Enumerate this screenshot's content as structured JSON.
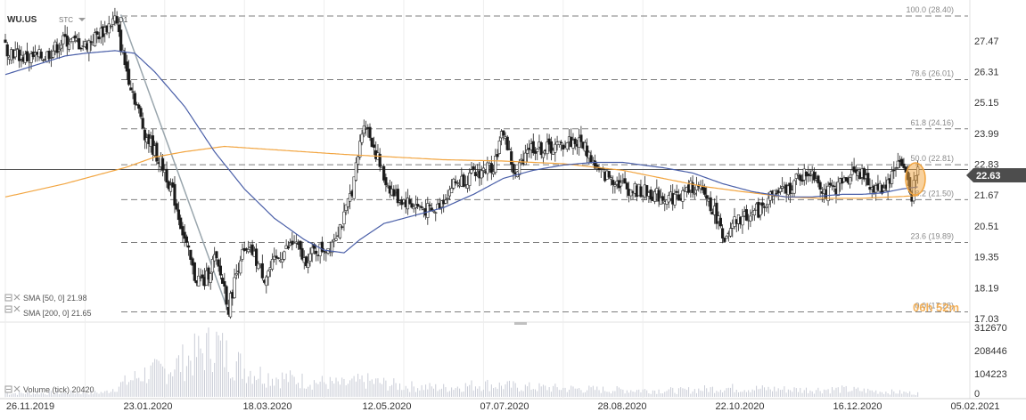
{
  "header": {
    "symbol": "WU.US",
    "chart_type": "STC",
    "interval": "D1"
  },
  "colors": {
    "up": "#ffffff",
    "down": "#1a1a1a",
    "candle_outline": "#222222",
    "sma50": "#4a5fa8",
    "sma200": "#f2a540",
    "fib": "#7d7d7d",
    "trend": "#9aa6ad",
    "current_price_badge": "#4d4d4d",
    "volume": "#c9ccd6",
    "highlight": "#f2a540"
  },
  "indicators": [
    {
      "label": "SMA [50, 0] 21.98",
      "color": "#4a5fa8"
    },
    {
      "label": "SMA [200, 0] 21.65",
      "color": "#f2a540"
    }
  ],
  "volume_label": "Volume (tick) 20420",
  "current_price": "22.63",
  "countdown": "06h 52m",
  "fib_labels": [
    "100.0 (28.40)",
    "78.6 (26.01)",
    "61.8 (24.16)",
    "50.0 (22.81)",
    "38.2 (21.50)",
    "23.6 (19.89)",
    "0.0 (17.28)"
  ],
  "chart_data": {
    "type": "candlestick",
    "x_tick_labels": [
      "26.11.2019",
      "23.01.2020",
      "18.03.2020",
      "12.05.2020",
      "07.07.2020",
      "28.08.2020",
      "22.10.2020",
      "16.12.2020",
      "05.02.2021"
    ],
    "y_tick_labels": [
      "27.47",
      "26.31",
      "25.15",
      "23.99",
      "22.83",
      "21.67",
      "20.51",
      "19.35",
      "18.19",
      "17.03"
    ],
    "ylim": [
      17.03,
      28.4
    ],
    "volume_tick_labels": [
      "312670",
      "208446",
      "104223",
      "0"
    ],
    "volume_ylim": [
      0,
      312670
    ],
    "fib_levels": [
      {
        "ratio": 100.0,
        "price": 28.4
      },
      {
        "ratio": 78.6,
        "price": 26.01
      },
      {
        "ratio": 61.8,
        "price": 24.16
      },
      {
        "ratio": 50.0,
        "price": 22.81
      },
      {
        "ratio": 38.2,
        "price": 21.5
      },
      {
        "ratio": 23.6,
        "price": 19.89
      },
      {
        "ratio": 0.0,
        "price": 17.28
      }
    ],
    "close_anchors": [
      [
        0,
        27.2
      ],
      [
        10,
        26.8
      ],
      [
        20,
        26.9
      ],
      [
        30,
        27.5
      ],
      [
        40,
        27.3
      ],
      [
        50,
        27.9
      ],
      [
        55,
        28.3
      ],
      [
        60,
        26.6
      ],
      [
        70,
        24.0
      ],
      [
        80,
        22.6
      ],
      [
        85,
        21.5
      ],
      [
        90,
        20.0
      ],
      [
        95,
        18.6
      ],
      [
        100,
        18.4
      ],
      [
        105,
        19.3
      ],
      [
        110,
        18.2
      ],
      [
        112,
        17.4
      ],
      [
        118,
        19.4
      ],
      [
        124,
        19.5
      ],
      [
        130,
        18.6
      ],
      [
        138,
        19.4
      ],
      [
        145,
        19.9
      ],
      [
        150,
        19.2
      ],
      [
        156,
        19.6
      ],
      [
        162,
        19.7
      ],
      [
        170,
        20.8
      ],
      [
        175,
        22.2
      ],
      [
        180,
        24.5
      ],
      [
        185,
        23.5
      ],
      [
        190,
        22.3
      ],
      [
        196,
        21.6
      ],
      [
        205,
        21.3
      ],
      [
        215,
        21.0
      ],
      [
        225,
        22.1
      ],
      [
        235,
        22.4
      ],
      [
        245,
        22.8
      ],
      [
        250,
        24.1
      ],
      [
        256,
        22.3
      ],
      [
        262,
        23.5
      ],
      [
        270,
        23.4
      ],
      [
        278,
        23.5
      ],
      [
        283,
        23.7
      ],
      [
        290,
        23.6
      ],
      [
        298,
        22.5
      ],
      [
        305,
        22.3
      ],
      [
        313,
        21.9
      ],
      [
        320,
        21.8
      ],
      [
        330,
        21.6
      ],
      [
        338,
        21.6
      ],
      [
        345,
        22.0
      ],
      [
        352,
        21.6
      ],
      [
        358,
        20.7
      ],
      [
        362,
        19.9
      ],
      [
        366,
        20.6
      ],
      [
        372,
        20.9
      ],
      [
        378,
        21.1
      ],
      [
        385,
        21.7
      ],
      [
        392,
        21.8
      ],
      [
        398,
        22.3
      ],
      [
        405,
        22.6
      ],
      [
        412,
        21.7
      ],
      [
        420,
        22.1
      ],
      [
        427,
        22.7
      ],
      [
        434,
        22.0
      ],
      [
        440,
        21.9
      ],
      [
        445,
        22.4
      ],
      [
        448,
        23.0
      ],
      [
        452,
        22.5
      ],
      [
        455,
        21.7
      ],
      [
        458,
        22.63
      ]
    ],
    "volume_anchors": [
      [
        0,
        20000
      ],
      [
        50,
        25000
      ],
      [
        60,
        80000
      ],
      [
        70,
        130000
      ],
      [
        80,
        150000
      ],
      [
        90,
        200000
      ],
      [
        100,
        260000
      ],
      [
        105,
        312000
      ],
      [
        110,
        240000
      ],
      [
        120,
        160000
      ],
      [
        130,
        120000
      ],
      [
        150,
        90000
      ],
      [
        170,
        70000
      ],
      [
        180,
        90000
      ],
      [
        200,
        60000
      ],
      [
        220,
        50000
      ],
      [
        240,
        70000
      ],
      [
        260,
        55000
      ],
      [
        300,
        40000
      ],
      [
        340,
        35000
      ],
      [
        360,
        50000
      ],
      [
        380,
        45000
      ],
      [
        400,
        40000
      ],
      [
        420,
        42000
      ],
      [
        440,
        30000
      ],
      [
        458,
        20420
      ]
    ],
    "sma50_anchors": [
      [
        0,
        26.2
      ],
      [
        30,
        26.9
      ],
      [
        40,
        27.0
      ],
      [
        55,
        27.1
      ],
      [
        65,
        27.0
      ],
      [
        75,
        26.3
      ],
      [
        90,
        25.0
      ],
      [
        105,
        23.3
      ],
      [
        120,
        21.9
      ],
      [
        135,
        20.8
      ],
      [
        150,
        20.0
      ],
      [
        160,
        19.6
      ],
      [
        170,
        19.5
      ],
      [
        178,
        20.0
      ],
      [
        190,
        20.6
      ],
      [
        205,
        20.9
      ],
      [
        220,
        21.2
      ],
      [
        235,
        21.7
      ],
      [
        250,
        22.3
      ],
      [
        265,
        22.6
      ],
      [
        280,
        22.8
      ],
      [
        295,
        22.9
      ],
      [
        310,
        22.9
      ],
      [
        330,
        22.7
      ],
      [
        345,
        22.5
      ],
      [
        360,
        22.1
      ],
      [
        375,
        21.8
      ],
      [
        392,
        21.6
      ],
      [
        405,
        21.6
      ],
      [
        420,
        21.7
      ],
      [
        430,
        21.7
      ],
      [
        440,
        21.75
      ],
      [
        450,
        21.9
      ],
      [
        458,
        21.98
      ]
    ],
    "sma200_anchors": [
      [
        0,
        21.6
      ],
      [
        30,
        22.1
      ],
      [
        60,
        22.7
      ],
      [
        75,
        23.1
      ],
      [
        90,
        23.3
      ],
      [
        110,
        23.5
      ],
      [
        130,
        23.4
      ],
      [
        150,
        23.3
      ],
      [
        170,
        23.2
      ],
      [
        195,
        23.1
      ],
      [
        220,
        23.0
      ],
      [
        250,
        22.95
      ],
      [
        280,
        22.85
      ],
      [
        310,
        22.6
      ],
      [
        330,
        22.3
      ],
      [
        350,
        22.0
      ],
      [
        370,
        21.8
      ],
      [
        392,
        21.6
      ],
      [
        410,
        21.55
      ],
      [
        430,
        21.55
      ],
      [
        445,
        21.6
      ],
      [
        458,
        21.65
      ]
    ],
    "trend_line": {
      "start": [
        58,
        28.45
      ],
      "end": [
        112,
        17.28
      ]
    },
    "series": [
      {
        "name": "WU.US"
      },
      {
        "name": "SMA [50, 0]"
      },
      {
        "name": "SMA [200, 0]"
      },
      {
        "name": "Volume (tick)"
      }
    ]
  }
}
